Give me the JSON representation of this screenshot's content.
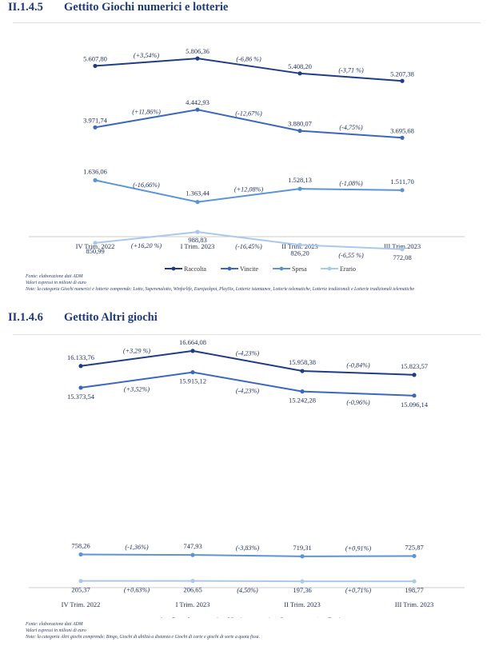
{
  "sections": [
    {
      "number": "II.1.4.5",
      "title": "Gettito Giochi numerici e lotterie",
      "notes": [
        "Fonte: elaborazione dati ADM",
        "Valori espressi in milioni di euro",
        "Note: la categoria Giochi numerici e lotterie comprende: Lotto, Superenalotto, Winforlife, Eurojackpot, PlaySix, Lotterie istantanee, Lotterie telematiche, Lotterie tradizionali e Lotterie tradizionali telematiche"
      ]
    },
    {
      "number": "II.1.4.6",
      "title": "Gettito Altri giochi",
      "notes": [
        "Fonte: elaborazione dati ADM",
        "Valori espressi in milioni di euro",
        "Note: la categoria Altri giochi comprende: Bingo, Giochi di abilità a distanza e Giochi di carte e giochi di sorte a quota fissa."
      ]
    }
  ],
  "chart_data": [
    {
      "type": "line",
      "categories": [
        "IV Trim. 2022",
        "I Trim. 2023",
        "II Trim. 2023",
        "III Trim.2023"
      ],
      "series": [
        {
          "name": "Raccolta",
          "color": "#1f3c88",
          "values": [
            5607.8,
            5806.36,
            5408.2,
            5207.38
          ],
          "labels": [
            "5.607,80",
            "5.806,36",
            "5.408,20",
            "5.207,38"
          ],
          "changes": [
            "(+3,54%)",
            "(-6,86 %)",
            "(-3,71 %)"
          ]
        },
        {
          "name": "Vincite",
          "color": "#3a67c0",
          "values": [
            3971.74,
            4442.93,
            3880.07,
            3695.68
          ],
          "labels": [
            "3.971,74",
            "4.442,93",
            "3.880,07",
            "3.695,68"
          ],
          "changes": [
            "(+11,86%)",
            "(-12,67%)",
            "(-4,75%)"
          ]
        },
        {
          "name": "Spesa",
          "color": "#5b95d8",
          "values": [
            1636.06,
            1363.44,
            1528.13,
            1511.7
          ],
          "labels": [
            "1.636,06",
            "1.363,44",
            "1.528,13",
            "1.511,70"
          ],
          "changes": [
            "(-16,66%)",
            "(+12,08%)",
            "(-1,08%)"
          ]
        },
        {
          "name": "Erario",
          "color": "#a9c8ec",
          "values": [
            850.99,
            988.83,
            826.2,
            772.08
          ],
          "labels": [
            "850,99",
            "988,83",
            "826,20",
            "772,08"
          ],
          "changes": [
            "(+16,20 %)",
            "(-16,45%)",
            "(-6,55 %)"
          ]
        }
      ]
    },
    {
      "type": "line",
      "categories": [
        "IV Trim. 2022",
        "I Trim. 2023",
        "II Trim. 2023",
        "III Trim. 2023"
      ],
      "series": [
        {
          "name": "Raccolta",
          "color": "#1f3c88",
          "values": [
            16133.76,
            16664.08,
            15958.38,
            15823.57
          ],
          "labels": [
            "16.133,76",
            "16.664,08",
            "15.958,38",
            "15.823,57"
          ],
          "changes": [
            "(+3,29 %)",
            "(-4,23%)",
            "(-0,84%)"
          ]
        },
        {
          "name": "Vincite",
          "color": "#3a67c0",
          "values": [
            15373.54,
            15915.12,
            15242.28,
            15096.14
          ],
          "labels": [
            "15.373,54",
            "15.915,12",
            "15.242,28",
            "15.096,14"
          ],
          "changes": [
            "(+3,52%)",
            "(-4,23%)",
            "(-0,96%)"
          ]
        },
        {
          "name": "Spesa",
          "color": "#5b95d8",
          "values": [
            758.26,
            747.93,
            719.31,
            725.87
          ],
          "labels": [
            "758,26",
            "747,93",
            "719,31",
            "725,87"
          ],
          "changes": [
            "(-1,36%)",
            "(-3,83%)",
            "(+0,91%)"
          ]
        },
        {
          "name": "Erario",
          "color": "#a9c8ec",
          "values": [
            205.37,
            206.65,
            197.36,
            198.77
          ],
          "labels": [
            "205,37",
            "206,65",
            "197,36",
            "198,77"
          ],
          "changes": [
            "(+0,63%)",
            "(4,50%)",
            "(+0,71%)"
          ]
        }
      ]
    }
  ]
}
